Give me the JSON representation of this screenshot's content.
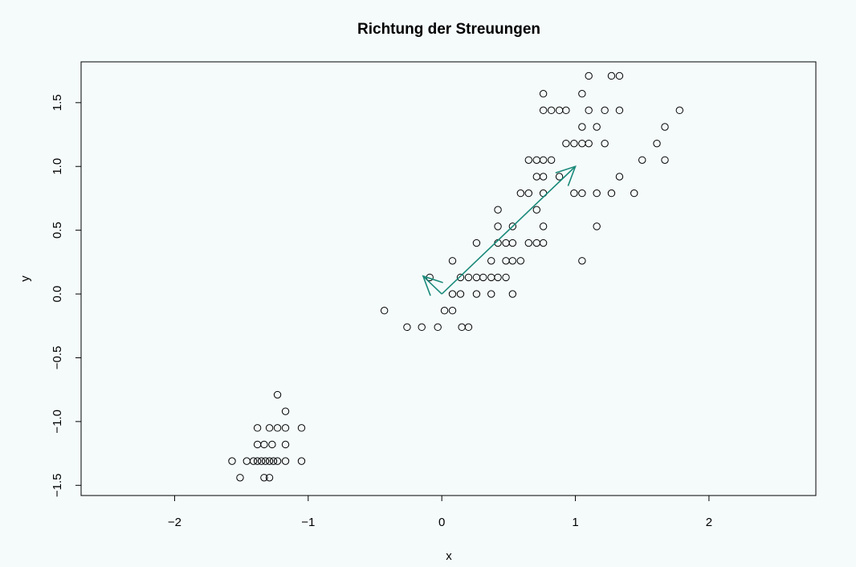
{
  "chart_data": {
    "type": "scatter",
    "title": "Richtung der Streuungen",
    "xlabel": "x",
    "ylabel": "y",
    "xlim": [
      -2.7,
      2.8
    ],
    "ylim": [
      -1.58,
      1.82
    ],
    "x_ticks": [
      -2,
      -1,
      0,
      1,
      2
    ],
    "x_tick_labels": [
      "−2",
      "−1",
      "0",
      "1",
      "2"
    ],
    "y_ticks": [
      -1.5,
      -1.0,
      -0.5,
      0.0,
      0.5,
      1.0,
      1.5
    ],
    "y_tick_labels": [
      "−1.5",
      "−1.0",
      "−0.5",
      "0.0",
      "0.5",
      "1.0",
      "1.5"
    ],
    "grid": false,
    "legend": "none",
    "colors": {
      "background": "#f5fbfb",
      "points": "#000000",
      "arrows": "#1a8a7a"
    },
    "arrows": [
      {
        "from": [
          0,
          0
        ],
        "to": [
          1.0,
          1.0
        ]
      },
      {
        "from": [
          0,
          0
        ],
        "to": [
          -0.14,
          0.14
        ]
      }
    ],
    "points": [
      [
        -1.57,
        -1.31
      ],
      [
        -1.51,
        -1.44
      ],
      [
        -1.46,
        -1.31
      ],
      [
        -1.41,
        -1.31
      ],
      [
        -1.38,
        -1.31
      ],
      [
        -1.35,
        -1.31
      ],
      [
        -1.32,
        -1.31
      ],
      [
        -1.29,
        -1.31
      ],
      [
        -1.26,
        -1.31
      ],
      [
        -1.23,
        -1.31
      ],
      [
        -1.17,
        -1.31
      ],
      [
        -1.05,
        -1.31
      ],
      [
        -1.38,
        -1.18
      ],
      [
        -1.33,
        -1.18
      ],
      [
        -1.27,
        -1.18
      ],
      [
        -1.17,
        -1.18
      ],
      [
        -1.38,
        -1.05
      ],
      [
        -1.29,
        -1.05
      ],
      [
        -1.23,
        -1.05
      ],
      [
        -1.17,
        -1.05
      ],
      [
        -1.05,
        -1.05
      ],
      [
        -1.17,
        -0.92
      ],
      [
        -1.23,
        -0.79
      ],
      [
        -1.33,
        -1.44
      ],
      [
        -1.29,
        -1.44
      ],
      [
        -0.43,
        -0.13
      ],
      [
        -0.26,
        -0.26
      ],
      [
        -0.15,
        -0.26
      ],
      [
        -0.03,
        -0.26
      ],
      [
        0.15,
        -0.26
      ],
      [
        0.2,
        -0.26
      ],
      [
        0.02,
        -0.13
      ],
      [
        0.08,
        -0.13
      ],
      [
        0.08,
        0.0
      ],
      [
        0.14,
        0.0
      ],
      [
        0.26,
        0.0
      ],
      [
        0.37,
        0.0
      ],
      [
        0.53,
        0.0
      ],
      [
        -0.09,
        0.13
      ],
      [
        0.14,
        0.13
      ],
      [
        0.2,
        0.13
      ],
      [
        0.26,
        0.13
      ],
      [
        0.31,
        0.13
      ],
      [
        0.37,
        0.13
      ],
      [
        0.42,
        0.13
      ],
      [
        0.48,
        0.13
      ],
      [
        0.08,
        0.26
      ],
      [
        0.37,
        0.26
      ],
      [
        0.48,
        0.26
      ],
      [
        0.53,
        0.26
      ],
      [
        0.59,
        0.26
      ],
      [
        0.26,
        0.4
      ],
      [
        0.42,
        0.4
      ],
      [
        0.48,
        0.4
      ],
      [
        0.53,
        0.4
      ],
      [
        0.65,
        0.4
      ],
      [
        0.71,
        0.4
      ],
      [
        0.76,
        0.4
      ],
      [
        0.42,
        0.53
      ],
      [
        0.53,
        0.53
      ],
      [
        0.76,
        0.53
      ],
      [
        0.42,
        0.66
      ],
      [
        0.71,
        0.66
      ],
      [
        0.59,
        0.79
      ],
      [
        0.65,
        0.79
      ],
      [
        0.76,
        0.79
      ],
      [
        0.99,
        0.79
      ],
      [
        1.05,
        0.79
      ],
      [
        1.16,
        0.79
      ],
      [
        1.27,
        0.79
      ],
      [
        1.44,
        0.79
      ],
      [
        0.71,
        0.92
      ],
      [
        0.76,
        0.92
      ],
      [
        0.88,
        0.92
      ],
      [
        1.33,
        0.92
      ],
      [
        0.65,
        1.05
      ],
      [
        0.71,
        1.05
      ],
      [
        0.76,
        1.05
      ],
      [
        0.82,
        1.05
      ],
      [
        1.5,
        1.05
      ],
      [
        1.67,
        1.05
      ],
      [
        0.93,
        1.18
      ],
      [
        0.99,
        1.18
      ],
      [
        1.05,
        1.18
      ],
      [
        1.1,
        1.18
      ],
      [
        1.22,
        1.18
      ],
      [
        1.61,
        1.18
      ],
      [
        1.05,
        1.31
      ],
      [
        1.16,
        1.31
      ],
      [
        1.67,
        1.31
      ],
      [
        0.76,
        1.44
      ],
      [
        0.82,
        1.44
      ],
      [
        0.88,
        1.44
      ],
      [
        0.93,
        1.44
      ],
      [
        1.1,
        1.44
      ],
      [
        1.22,
        1.44
      ],
      [
        1.33,
        1.44
      ],
      [
        1.78,
        1.44
      ],
      [
        0.76,
        1.57
      ],
      [
        1.05,
        1.57
      ],
      [
        1.1,
        1.71
      ],
      [
        1.27,
        1.71
      ],
      [
        1.33,
        1.71
      ],
      [
        1.05,
        0.26
      ],
      [
        1.16,
        0.53
      ]
    ]
  }
}
